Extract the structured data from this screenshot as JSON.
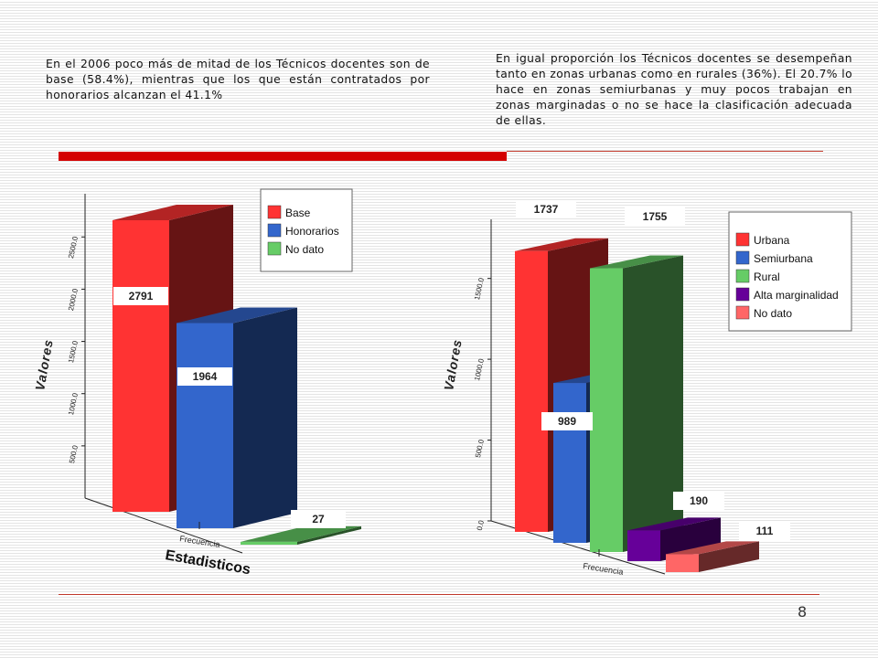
{
  "text": {
    "left_paragraph": "En el 2006 poco más de mitad de los Técnicos docentes son de base (58.4%), mientras que los que están contratados por honorarios alcanzan el  41.1%",
    "right_paragraph": "En igual proporción los Técnicos docentes se desempeñan tanto en zonas urbanas como en rurales (36%). El 20.7% lo hace en zonas semiurbanas y muy pocos trabajan en zonas marginadas o no se hace la clasificación adecuada de ellas.",
    "page_number": "8"
  },
  "chart_data": [
    {
      "type": "bar",
      "style": "3d",
      "ylabel": "Valores",
      "xlabel": "Estadisticos",
      "categories": [
        "Frecuencia"
      ],
      "ylim": [
        0,
        2800
      ],
      "yticks": [
        "500.0",
        "1000.0",
        "1500.0",
        "2000.0",
        "2500.0"
      ],
      "ytick_values": [
        500,
        1000,
        1500,
        2000,
        2500
      ],
      "grid": false,
      "legend_position": "top-right",
      "series": [
        {
          "name": "Base",
          "value": 2791,
          "label": "2791",
          "color": "#ff3333"
        },
        {
          "name": "Honorarios",
          "value": 1964,
          "label": "1964",
          "color": "#3366cc"
        },
        {
          "name": "No dato",
          "value": 27,
          "label": "27",
          "color": "#66cc66"
        }
      ]
    },
    {
      "type": "bar",
      "style": "3d",
      "ylabel": "Valores",
      "xlabel": "",
      "categories": [
        "Frecuencia"
      ],
      "ylim": [
        0,
        1800
      ],
      "yticks": [
        "0.0",
        "500.0",
        "1000.0",
        "1500.0"
      ],
      "ytick_values": [
        0,
        500,
        1000,
        1500
      ],
      "grid": false,
      "legend_position": "top-right",
      "series": [
        {
          "name": "Urbana",
          "value": 1737,
          "label": "1737",
          "color": "#ff3333"
        },
        {
          "name": "Semiurbana",
          "value": 989,
          "label": "989",
          "color": "#3366cc"
        },
        {
          "name": "Rural",
          "value": 1755,
          "label": "1755",
          "color": "#66cc66"
        },
        {
          "name": "Alta marginalidad",
          "value": 190,
          "label": "190",
          "color": "#660099"
        },
        {
          "name": "No dato",
          "value": 111,
          "label": "111",
          "color": "#ff6666"
        }
      ]
    }
  ]
}
